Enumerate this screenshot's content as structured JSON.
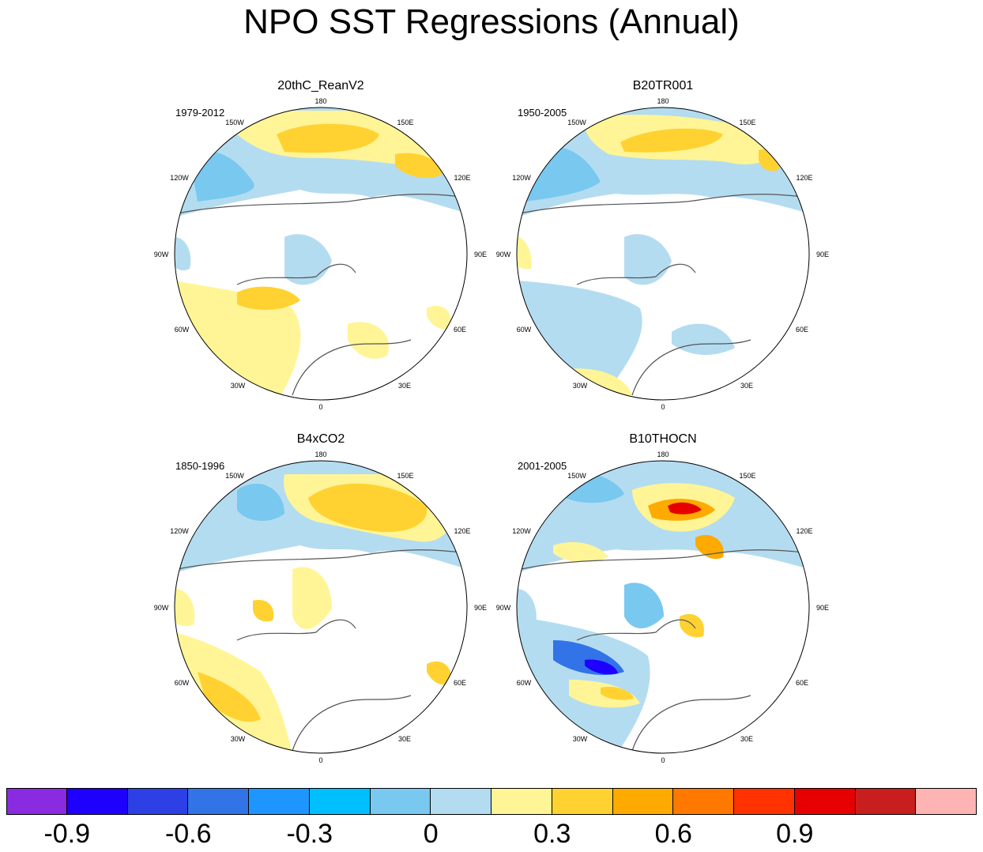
{
  "title": "NPO SST Regressions (Annual)",
  "panels": [
    {
      "name": "20thC_ReanV2",
      "period": "1979-2012"
    },
    {
      "name": "B20TR001",
      "period": "1950-2005"
    },
    {
      "name": "B4xCO2",
      "period": "1850-1996"
    },
    {
      "name": "B10THOCN",
      "period": "2001-2005"
    }
  ],
  "lon_labels": [
    "180",
    "150E",
    "120E",
    "90E",
    "60E",
    "30E",
    "0",
    "30W",
    "60W",
    "90W",
    "120W",
    "150W"
  ],
  "colorbar": {
    "colors": [
      "#8a2be2",
      "#1e00ff",
      "#2d40e6",
      "#3273e8",
      "#1e96ff",
      "#00bfff",
      "#78c8f0",
      "#b4dcf0",
      "#fff596",
      "#ffd232",
      "#ffaa00",
      "#ff7800",
      "#ff3200",
      "#e60000",
      "#c81e1e",
      "#ffb4b4"
    ],
    "ticks": [
      "-0.9",
      "-0.6",
      "-0.3",
      "0",
      "0.3",
      "0.6",
      "0.9"
    ]
  }
}
